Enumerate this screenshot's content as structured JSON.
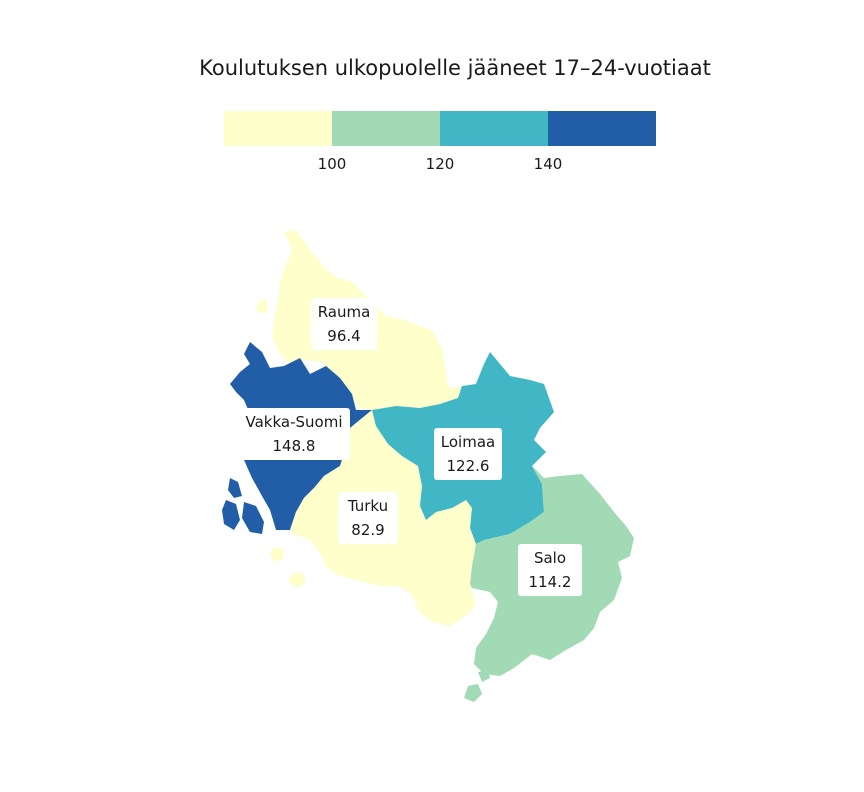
{
  "title": "Koulutuksen ulkopuolelle jääneet 17–24-vuotiaat",
  "legend": {
    "colors": [
      "#ffffcc",
      "#a1dab4",
      "#41b6c4",
      "#225ea8"
    ],
    "ticks": [
      "100",
      "120",
      "140"
    ],
    "thresholds": [
      100,
      120,
      140
    ]
  },
  "regions": [
    {
      "id": "rauma",
      "name": "Rauma",
      "value": "96.4",
      "color": "#ffffcc"
    },
    {
      "id": "vakka-suomi",
      "name": "Vakka-Suomi",
      "value": "148.8",
      "color": "#225ea8"
    },
    {
      "id": "turku",
      "name": "Turku",
      "value": "82.9",
      "color": "#ffffcc"
    },
    {
      "id": "loimaa",
      "name": "Loimaa",
      "value": "122.6",
      "color": "#41b6c4"
    },
    {
      "id": "salo",
      "name": "Salo",
      "value": "114.2",
      "color": "#a1dab4"
    }
  ]
}
